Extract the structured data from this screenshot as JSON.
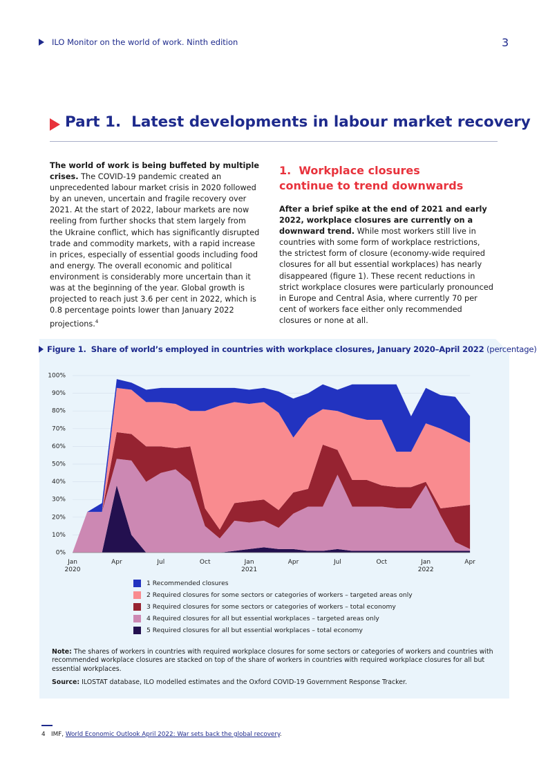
{
  "header": {
    "running_title": "ILO Monitor on the world of work. Ninth edition",
    "page_number": "3"
  },
  "part_title": "Part 1.  Latest developments in labour market recovery",
  "intro": {
    "lead": "The world of work is being buffeted by multiple crises.",
    "text": "The COVID-19 pandemic created an unprecedented labour market crisis in 2020 followed by an uneven, uncertain and fragile recovery over 2021. At the start of 2022, labour markets are now reeling from further shocks that stem largely from the Ukraine conflict, which has significantly disrupted trade and commodity markets, with a rapid increase in prices, especially of essential goods including food and energy. The overall economic and political environment is considerably more uncertain than it was at the beginning of the year. Global growth is projected to reach just 3.6 per cent in 2022, which is 0.8 percentage points lower than January 2022 projections.",
    "footnote_ref": "4"
  },
  "section": {
    "heading": "1.  Workplace closures continue to trend downwards",
    "lead": "After a brief spike at the end of 2021 and early 2022, workplace closures are currently on a downward trend.",
    "text": "While most workers still live in countries with some form of workplace restrictions, the strictest form of closure (economy-wide required closures for all but essential workplaces) has nearly disappeared (figure 1). These recent reductions in strict workplace closures were particularly pronounced in Europe and Central Asia, where currently 70 per cent of workers face either only recommended closures or none at all."
  },
  "figure": {
    "label": "Figure 1.",
    "title": "Share of world’s employed in countries with workplace closures, January 2020–April 2022",
    "unit": "(percentage)",
    "note_label": "Note:",
    "note": "The shares of workers in countries with required workplace closures for some sectors or categories of workers and countries with recommended workplace closures are stacked on top of the share of workers in countries with required workplace closures for all but essential workplaces.",
    "source_label": "Source:",
    "source": "ILOSTAT database, ILO modelled estimates and the Oxford COVID-19 Government Response Tracker."
  },
  "chart_data": {
    "type": "area",
    "stacked": true,
    "grid": true,
    "legend": "bottom",
    "categories": [
      "Jan\n2020",
      null,
      null,
      "Apr",
      null,
      null,
      "Jul",
      null,
      null,
      "Oct",
      null,
      null,
      "Jan\n2021",
      null,
      null,
      "Apr",
      null,
      null,
      "Jul",
      null,
      null,
      "Oct",
      null,
      null,
      "Jan\n2022",
      null,
      null,
      "Apr"
    ],
    "ylim": [
      0,
      100
    ],
    "yticks": [
      {
        "value": 0,
        "label": "0%"
      },
      {
        "value": 10,
        "label": "10%"
      },
      {
        "value": 20,
        "label": "20%"
      },
      {
        "value": 30,
        "label": "30%"
      },
      {
        "value": 40,
        "label": "40%"
      },
      {
        "value": 50,
        "label": "50%"
      },
      {
        "value": 60,
        "label": "60%"
      },
      {
        "value": 70,
        "label": "70%"
      },
      {
        "value": 80,
        "label": "80%"
      },
      {
        "value": 90,
        "label": "90%"
      },
      {
        "value": 100,
        "label": "100%"
      }
    ],
    "series": [
      {
        "name": "1 Recommended closures",
        "color": "#2233c0",
        "values": [
          0,
          0,
          5,
          5,
          4,
          7,
          8,
          9,
          13,
          13,
          10,
          8,
          8,
          8,
          12,
          22,
          14,
          14,
          12,
          18,
          20,
          20,
          38,
          20,
          20,
          19,
          22,
          15
        ]
      },
      {
        "name": "2 Required closures for some sectors or categories of workers – targeted areas only",
        "color": "#f98b8f",
        "values": [
          0,
          0,
          0,
          25,
          25,
          25,
          25,
          25,
          20,
          55,
          70,
          57,
          55,
          55,
          55,
          31,
          40,
          20,
          22,
          36,
          34,
          37,
          20,
          20,
          33,
          45,
          40,
          35
        ]
      },
      {
        "name": "3 Required closures for some sectors or categories of workers – total economy",
        "color": "#962331",
        "values": [
          0,
          0,
          0,
          15,
          15,
          20,
          15,
          12,
          20,
          10,
          5,
          10,
          12,
          12,
          10,
          12,
          10,
          35,
          14,
          15,
          15,
          12,
          12,
          12,
          2,
          4,
          20,
          25
        ]
      },
      {
        "name": "4 Required closures for all but essential workplaces – targeted areas only",
        "color": "#cc88b3",
        "values": [
          0,
          23,
          23,
          15,
          42,
          40,
          45,
          47,
          40,
          15,
          8,
          17,
          15,
          15,
          12,
          20,
          25,
          25,
          42,
          25,
          25,
          25,
          24,
          24,
          37,
          20,
          5,
          1
        ]
      },
      {
        "name": "5 Required closures for all but essential workplaces – total economy",
        "color": "#23104f",
        "values": [
          0,
          0,
          0,
          38,
          10,
          0,
          0,
          0,
          0,
          0,
          0,
          1,
          2,
          3,
          2,
          2,
          1,
          1,
          2,
          1,
          1,
          1,
          1,
          1,
          1,
          1,
          1,
          1
        ]
      }
    ]
  },
  "footnote": {
    "number": "4",
    "prefix": "IMF, ",
    "link": "World Economic Outlook April 2022: War sets back the global recovery",
    "suffix": "."
  }
}
